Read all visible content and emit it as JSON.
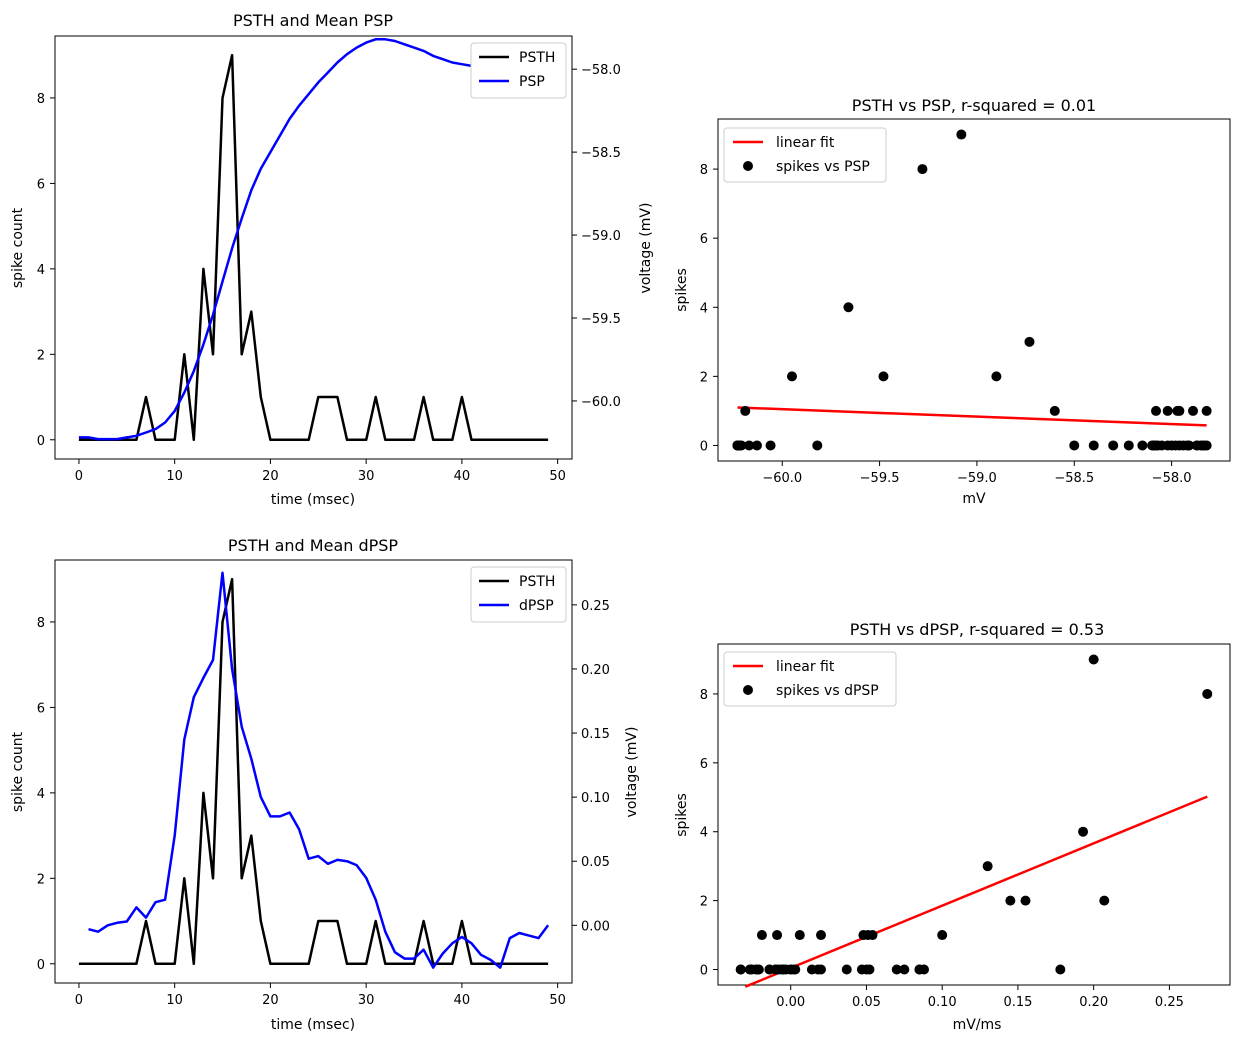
{
  "chart_data": [
    {
      "type": "line",
      "title": "PSTH and Mean PSP",
      "xlabel": "time (msec)",
      "ylabel": "spike count",
      "y2label": "voltage (mV)",
      "xlim": [
        -2.5,
        51.5
      ],
      "ylim": [
        -0.45,
        9.45
      ],
      "y2lim": [
        -60.35,
        -57.8
      ],
      "xticks": [
        0,
        10,
        20,
        30,
        40,
        50
      ],
      "yticks": [
        0,
        2,
        4,
        6,
        8
      ],
      "y2ticks": [
        -60.0,
        -59.5,
        -59.0,
        -58.5,
        -58.0
      ],
      "y2ticklabels": [
        "−60.0",
        "−59.5",
        "−59.0",
        "−58.5",
        "−58.0"
      ],
      "legend_position": "top-right",
      "grid": false,
      "series": [
        {
          "name": "PSTH",
          "axis": "left",
          "color": "#000000",
          "x": [
            0,
            1,
            2,
            3,
            4,
            5,
            6,
            7,
            8,
            9,
            10,
            11,
            12,
            13,
            14,
            15,
            16,
            17,
            18,
            19,
            20,
            21,
            22,
            23,
            24,
            25,
            26,
            27,
            28,
            29,
            30,
            31,
            32,
            33,
            34,
            35,
            36,
            37,
            38,
            39,
            40,
            41,
            42,
            43,
            44,
            45,
            46,
            47,
            48,
            49
          ],
          "values": [
            0,
            0,
            0,
            0,
            0,
            0,
            0,
            1,
            0,
            0,
            0,
            2,
            0,
            4,
            2,
            8,
            9,
            2,
            3,
            1,
            0,
            0,
            0,
            0,
            0,
            1,
            1,
            1,
            0,
            0,
            0,
            1,
            0,
            0,
            0,
            0,
            1,
            0,
            0,
            0,
            1,
            0,
            0,
            0,
            0,
            0,
            0,
            0,
            0,
            0
          ]
        },
        {
          "name": "PSP",
          "axis": "right",
          "color": "#0000ff",
          "x": [
            0,
            1,
            2,
            3,
            4,
            5,
            6,
            7,
            8,
            9,
            10,
            11,
            12,
            13,
            14,
            15,
            16,
            17,
            18,
            19,
            20,
            21,
            22,
            23,
            24,
            25,
            26,
            27,
            28,
            29,
            30,
            31,
            32,
            33,
            34,
            35,
            36,
            37,
            38,
            39,
            40,
            41,
            42,
            43,
            44,
            45,
            46,
            47,
            48,
            49
          ],
          "values": [
            -60.22,
            -60.22,
            -60.23,
            -60.23,
            -60.23,
            -60.22,
            -60.21,
            -60.19,
            -60.17,
            -60.13,
            -60.06,
            -59.95,
            -59.82,
            -59.66,
            -59.48,
            -59.28,
            -59.08,
            -58.9,
            -58.73,
            -58.6,
            -58.5,
            -58.4,
            -58.3,
            -58.22,
            -58.15,
            -58.08,
            -58.02,
            -57.96,
            -57.91,
            -57.87,
            -57.84,
            -57.82,
            -57.82,
            -57.83,
            -57.85,
            -57.87,
            -57.89,
            -57.92,
            -57.94,
            -57.96,
            -57.97,
            -57.98,
            -58.0,
            -58.02,
            -58.05,
            -58.07,
            -58.08,
            -58.09,
            -58.09,
            -58.1
          ]
        }
      ]
    },
    {
      "type": "scatter",
      "title": "PSTH vs PSP, r-squared = 0.01",
      "xlabel": "mV",
      "ylabel": "spikes",
      "xlim": [
        -60.33,
        -57.7
      ],
      "ylim": [
        -0.45,
        9.45
      ],
      "xticks": [
        -60.0,
        -59.5,
        -59.0,
        -58.5,
        -58.0
      ],
      "xticklabels": [
        "−60.0",
        "−59.5",
        "−59.0",
        "−58.5",
        "−58.0"
      ],
      "yticks": [
        0,
        2,
        4,
        6,
        8
      ],
      "legend_position": "top-left",
      "grid": false,
      "series": [
        {
          "name": "linear fit",
          "kind": "line",
          "color": "#ff0000",
          "x": [
            -60.23,
            -57.82
          ],
          "values": [
            1.1,
            0.58
          ]
        },
        {
          "name": "spikes vs PSP",
          "kind": "scatter",
          "color": "#000000",
          "x": [
            -60.22,
            -60.22,
            -60.23,
            -60.23,
            -60.23,
            -60.22,
            -60.21,
            -60.19,
            -60.17,
            -60.13,
            -60.06,
            -59.95,
            -59.82,
            -59.66,
            -59.48,
            -59.28,
            -59.08,
            -58.9,
            -58.73,
            -58.6,
            -58.5,
            -58.4,
            -58.3,
            -58.22,
            -58.15,
            -58.08,
            -58.02,
            -57.96,
            -57.91,
            -57.87,
            -57.84,
            -57.82,
            -57.82,
            -57.83,
            -57.85,
            -57.87,
            -57.89,
            -57.92,
            -57.94,
            -57.96,
            -57.97,
            -57.98,
            -58.0,
            -58.02,
            -58.05,
            -58.07,
            -58.08,
            -58.09,
            -58.09,
            -58.1
          ],
          "values": [
            0,
            0,
            0,
            0,
            0,
            0,
            0,
            1,
            0,
            0,
            0,
            2,
            0,
            4,
            2,
            8,
            9,
            2,
            3,
            1,
            0,
            0,
            0,
            0,
            0,
            1,
            1,
            1,
            0,
            0,
            0,
            1,
            0,
            0,
            0,
            0,
            1,
            0,
            0,
            0,
            1,
            0,
            0,
            0,
            0,
            0,
            0,
            0,
            0,
            0
          ]
        }
      ]
    },
    {
      "type": "line",
      "title": "PSTH and Mean dPSP",
      "xlabel": "time (msec)",
      "ylabel": "spike count",
      "y2label": "voltage (mV)",
      "xlim": [
        -2.5,
        51.5
      ],
      "ylim": [
        -0.45,
        9.45
      ],
      "y2lim": [
        -0.045,
        0.285
      ],
      "xticks": [
        0,
        10,
        20,
        30,
        40,
        50
      ],
      "yticks": [
        0,
        2,
        4,
        6,
        8
      ],
      "y2ticks": [
        0.0,
        0.05,
        0.1,
        0.15,
        0.2,
        0.25
      ],
      "y2ticklabels": [
        "0.00",
        "0.05",
        "0.10",
        "0.15",
        "0.20",
        "0.25"
      ],
      "legend_position": "top-right",
      "grid": false,
      "series": [
        {
          "name": "PSTH",
          "axis": "left",
          "color": "#000000",
          "x": [
            0,
            1,
            2,
            3,
            4,
            5,
            6,
            7,
            8,
            9,
            10,
            11,
            12,
            13,
            14,
            15,
            16,
            17,
            18,
            19,
            20,
            21,
            22,
            23,
            24,
            25,
            26,
            27,
            28,
            29,
            30,
            31,
            32,
            33,
            34,
            35,
            36,
            37,
            38,
            39,
            40,
            41,
            42,
            43,
            44,
            45,
            46,
            47,
            48,
            49
          ],
          "values": [
            0,
            0,
            0,
            0,
            0,
            0,
            0,
            1,
            0,
            0,
            0,
            2,
            0,
            4,
            2,
            8,
            9,
            2,
            3,
            1,
            0,
            0,
            0,
            0,
            0,
            1,
            1,
            1,
            0,
            0,
            0,
            1,
            0,
            0,
            0,
            0,
            1,
            0,
            0,
            0,
            1,
            0,
            0,
            0,
            0,
            0,
            0,
            0,
            0,
            0
          ]
        },
        {
          "name": "dPSP",
          "axis": "right",
          "color": "#0000ff",
          "x": [
            1,
            2,
            3,
            4,
            5,
            6,
            7,
            8,
            9,
            10,
            11,
            12,
            13,
            14,
            15,
            16,
            17,
            18,
            19,
            20,
            21,
            22,
            23,
            24,
            25,
            26,
            27,
            28,
            29,
            30,
            31,
            32,
            33,
            34,
            35,
            36,
            37,
            38,
            39,
            40,
            41,
            42,
            43,
            44,
            45,
            46,
            47,
            48,
            49
          ],
          "values": [
            -0.003,
            -0.005,
            0.0,
            0.002,
            0.003,
            0.014,
            0.006,
            0.018,
            0.02,
            0.07,
            0.145,
            0.178,
            0.193,
            0.207,
            0.275,
            0.2,
            0.155,
            0.13,
            0.1,
            0.085,
            0.085,
            0.088,
            0.075,
            0.052,
            0.054,
            0.048,
            0.051,
            0.05,
            0.047,
            0.037,
            0.02,
            -0.005,
            -0.021,
            -0.026,
            -0.026,
            -0.019,
            -0.033,
            -0.022,
            -0.014,
            -0.009,
            -0.014,
            -0.023,
            -0.027,
            -0.033,
            -0.01,
            -0.006,
            -0.008,
            -0.01,
            0.0
          ]
        }
      ]
    },
    {
      "type": "scatter",
      "title": "PSTH vs dPSP, r-squared = 0.53",
      "xlabel": "mV/ms",
      "ylabel": "spikes",
      "xlim": [
        -0.048,
        0.29
      ],
      "ylim": [
        -0.45,
        9.45
      ],
      "xticks": [
        0.0,
        0.05,
        0.1,
        0.15,
        0.2,
        0.25
      ],
      "xticklabels": [
        "0.00",
        "0.05",
        "0.10",
        "0.15",
        "0.20",
        "0.25"
      ],
      "yticks": [
        0,
        2,
        4,
        6,
        8
      ],
      "legend_position": "top-left",
      "grid": false,
      "series": [
        {
          "name": "linear fit",
          "kind": "line",
          "color": "#ff0000",
          "x": [
            -0.03,
            0.275
          ],
          "values": [
            -0.5,
            5.02
          ]
        },
        {
          "name": "spikes vs dPSP",
          "kind": "scatter",
          "color": "#000000",
          "x": [
            -0.003,
            -0.005,
            0.0,
            0.002,
            0.003,
            0.014,
            0.006,
            0.018,
            0.02,
            0.07,
            0.145,
            0.178,
            0.193,
            0.207,
            0.275,
            0.2,
            0.155,
            0.13,
            0.1,
            0.085,
            0.085,
            0.088,
            0.075,
            0.052,
            0.054,
            0.048,
            0.051,
            0.05,
            0.047,
            0.037,
            0.02,
            -0.005,
            -0.021,
            -0.026,
            -0.026,
            -0.019,
            -0.033,
            -0.022,
            -0.014,
            -0.009,
            -0.014,
            -0.023,
            -0.027,
            -0.033,
            -0.01,
            -0.006,
            -0.008,
            -0.01,
            0.0
          ],
          "values": [
            0,
            0,
            0,
            0,
            0,
            0,
            1,
            0,
            0,
            0,
            2,
            0,
            4,
            2,
            8,
            9,
            2,
            3,
            1,
            0,
            0,
            0,
            0,
            0,
            1,
            1,
            1,
            0,
            0,
            0,
            1,
            0,
            0,
            0,
            0,
            1,
            0,
            0,
            0,
            1,
            0,
            0,
            0,
            0,
            0,
            0,
            0,
            0,
            0
          ]
        }
      ]
    }
  ]
}
